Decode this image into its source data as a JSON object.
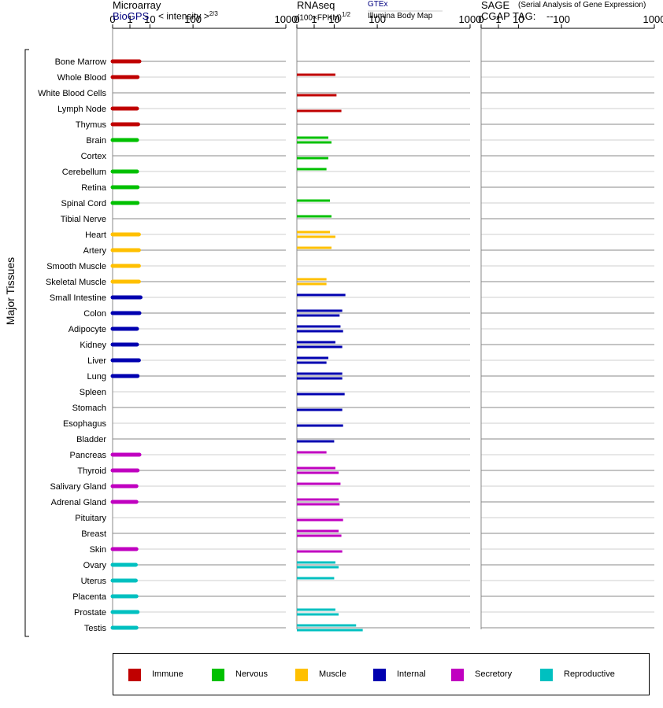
{
  "headers": {
    "microarray": {
      "title": "Microarray",
      "source": "BioGPS",
      "measure": "< intensity >",
      "exponent": "2/3"
    },
    "rnaseq": {
      "title": "RNAseq",
      "unit": "(100×FPKM)",
      "exponent": "1/2",
      "source1": "GTEx",
      "source2": "Illumina Body Map"
    },
    "sage": {
      "title": "SAGE",
      "subtitle": "(Serial Analysis of Gene Expression)",
      "tag_label": "CGAP TAG:",
      "tag_value": "--"
    }
  },
  "y_group_label": "Major Tissues",
  "colors": {
    "Immune": "#c00000",
    "Nervous": "#00c000",
    "Muscle": "#ffc000",
    "Internal": "#0000b0",
    "Secretory": "#c000c0",
    "Reproductive": "#00c0c0"
  },
  "legend": [
    {
      "label": "Immune",
      "color": "#c00000"
    },
    {
      "label": "Nervous",
      "color": "#00c000"
    },
    {
      "label": "Muscle",
      "color": "#ffc000"
    },
    {
      "label": "Internal",
      "color": "#0000b0"
    },
    {
      "label": "Secretory",
      "color": "#c000c0"
    },
    {
      "label": "Reproductive",
      "color": "#00c0c0"
    }
  ],
  "chart_data": {
    "type": "bar",
    "orientation": "horizontal",
    "axis_ticks": [
      "0",
      "1",
      "10",
      "100",
      "1000"
    ],
    "axis_tick_values": [
      0,
      1,
      10,
      100,
      1000
    ],
    "scale_note": "each panel axis is the measure raised to the power shown in its header; values are in printed tick units",
    "panels": [
      "Microarray",
      "RNAseq",
      "SAGE"
    ],
    "categories": [
      "Bone Marrow",
      "Whole Blood",
      "White Blood Cells",
      "Lymph Node",
      "Thymus",
      "Brain",
      "Cortex",
      "Cerebellum",
      "Retina",
      "Spinal Cord",
      "Tibial Nerve",
      "Heart",
      "Artery",
      "Smooth Muscle",
      "Skeletal Muscle",
      "Small Intestine",
      "Colon",
      "Adipocyte",
      "Kidney",
      "Liver",
      "Lung",
      "Spleen",
      "Stomach",
      "Esophagus",
      "Bladder",
      "Pancreas",
      "Thyroid",
      "Salivary Gland",
      "Adrenal Gland",
      "Pituitary",
      "Breast",
      "Skin",
      "Ovary",
      "Uterus",
      "Placenta",
      "Prostate",
      "Testis"
    ],
    "groups": [
      "Immune",
      "Immune",
      "Immune",
      "Immune",
      "Immune",
      "Nervous",
      "Nervous",
      "Nervous",
      "Nervous",
      "Nervous",
      "Nervous",
      "Muscle",
      "Muscle",
      "Muscle",
      "Muscle",
      "Internal",
      "Internal",
      "Internal",
      "Internal",
      "Internal",
      "Internal",
      "Internal",
      "Internal",
      "Internal",
      "Internal",
      "Secretory",
      "Secretory",
      "Secretory",
      "Secretory",
      "Secretory",
      "Secretory",
      "Secretory",
      "Reproductive",
      "Reproductive",
      "Reproductive",
      "Reproductive",
      "Reproductive"
    ],
    "microarray": [
      3.7,
      3.0,
      null,
      2.8,
      3.2,
      2.8,
      null,
      2.8,
      3.0,
      3.0,
      null,
      3.5,
      3.5,
      3.5,
      3.5,
      4.2,
      3.7,
      2.8,
      2.8,
      3.5,
      3.0,
      null,
      null,
      null,
      null,
      3.7,
      3.0,
      2.6,
      2.6,
      null,
      null,
      2.6,
      2.4,
      2.4,
      2.6,
      3.0,
      2.6
    ],
    "rnaseq_gtex": [
      null,
      11,
      null,
      null,
      null,
      6,
      null,
      5,
      null,
      7,
      8,
      7,
      8,
      null,
      5,
      22,
      18,
      16,
      11,
      6,
      18,
      null,
      null,
      null,
      null,
      5,
      11,
      16,
      14,
      null,
      14,
      null,
      11,
      10,
      null,
      11,
      40
    ],
    "rnaseq_ibm": [
      null,
      null,
      12,
      17,
      null,
      8,
      6,
      null,
      null,
      null,
      null,
      11,
      null,
      null,
      5,
      null,
      15,
      19,
      18,
      5,
      18,
      21,
      18,
      19,
      10,
      null,
      14,
      null,
      15,
      19,
      17,
      18,
      14,
      null,
      null,
      14,
      55
    ],
    "sage": []
  }
}
